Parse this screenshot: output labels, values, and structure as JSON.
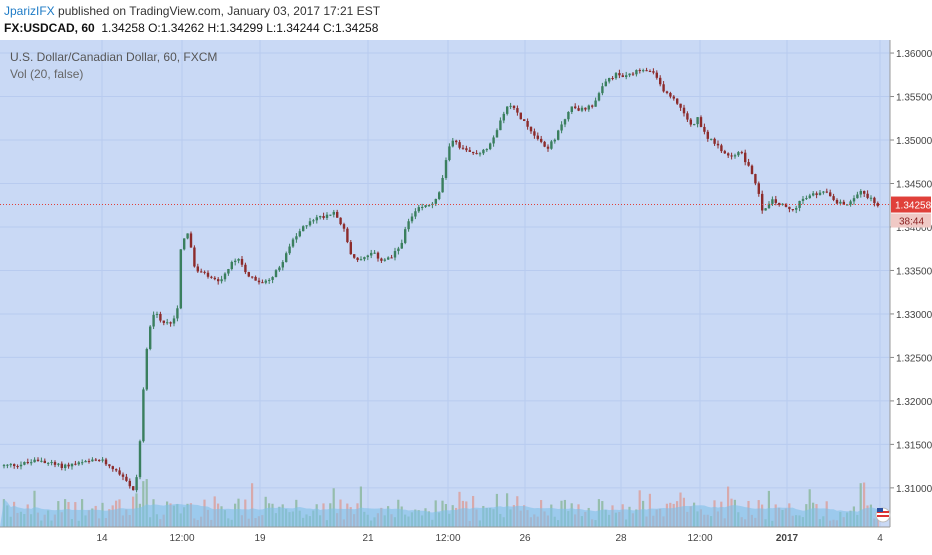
{
  "header": {
    "author": "JparizIFX",
    "published": "published on TradingView.com, January 03, 2017 17:21 EST",
    "symbol": "FX:USDCAD, 60",
    "o_label": "O:",
    "o": "1.34262",
    "h_label": "H:",
    "h": "1.34299",
    "l_label": "L:",
    "l": "1.34244",
    "c_label": "C:",
    "c": "1.34258",
    "last": "1.34258"
  },
  "legend": {
    "title": "U.S. Dollar/Canadian Dollar, 60, FXCM",
    "volume": "Vol (20, false)"
  },
  "colors": {
    "background": "#c9d9f5",
    "up": "#3a7f5e",
    "down": "#8c2b2b",
    "volume_up": "#8fb9a4",
    "volume_down": "#d9a3a3",
    "volume_ma": "#7fbfe8",
    "last_price": "#e0403a"
  },
  "chart_data": {
    "type": "candlestick",
    "ylim": [
      1.3055,
      1.3615
    ],
    "y_ticks": [
      "1.36000",
      "1.35500",
      "1.35000",
      "1.34500",
      "1.34000",
      "1.33500",
      "1.33000",
      "1.32500",
      "1.32000",
      "1.31500",
      "1.31000"
    ],
    "x_ticks": [
      "14",
      "12:00",
      "19",
      "21",
      "12:00",
      "26",
      "28",
      "12:00",
      "2017",
      "4"
    ],
    "last_price": 1.34258,
    "countdown": "38:44",
    "path": [
      [
        0,
        1.3125
      ],
      [
        20,
        1.3127
      ],
      [
        40,
        1.3132
      ],
      [
        60,
        1.3125
      ],
      [
        80,
        1.3128
      ],
      [
        100,
        1.3132
      ],
      [
        115,
        1.3122
      ],
      [
        125,
        1.3112
      ],
      [
        133,
        1.3095
      ],
      [
        138,
        1.312
      ],
      [
        143,
        1.3205
      ],
      [
        148,
        1.328
      ],
      [
        155,
        1.3305
      ],
      [
        162,
        1.3288
      ],
      [
        170,
        1.329
      ],
      [
        177,
        1.33
      ],
      [
        181,
        1.338
      ],
      [
        188,
        1.3395
      ],
      [
        195,
        1.335
      ],
      [
        205,
        1.3345
      ],
      [
        212,
        1.334
      ],
      [
        220,
        1.3335
      ],
      [
        230,
        1.3355
      ],
      [
        238,
        1.3365
      ],
      [
        248,
        1.3345
      ],
      [
        258,
        1.3335
      ],
      [
        268,
        1.334
      ],
      [
        278,
        1.335
      ],
      [
        288,
        1.3375
      ],
      [
        300,
        1.3395
      ],
      [
        310,
        1.3408
      ],
      [
        322,
        1.3412
      ],
      [
        335,
        1.3418
      ],
      [
        343,
        1.34
      ],
      [
        352,
        1.3365
      ],
      [
        362,
        1.3362
      ],
      [
        372,
        1.337
      ],
      [
        382,
        1.3362
      ],
      [
        392,
        1.3365
      ],
      [
        400,
        1.3378
      ],
      [
        408,
        1.3405
      ],
      [
        418,
        1.342
      ],
      [
        428,
        1.3425
      ],
      [
        438,
        1.3432
      ],
      [
        446,
        1.3475
      ],
      [
        452,
        1.3502
      ],
      [
        460,
        1.3492
      ],
      [
        468,
        1.3485
      ],
      [
        478,
        1.3485
      ],
      [
        488,
        1.3492
      ],
      [
        496,
        1.351
      ],
      [
        502,
        1.353
      ],
      [
        510,
        1.354
      ],
      [
        518,
        1.353
      ],
      [
        528,
        1.3515
      ],
      [
        536,
        1.3505
      ],
      [
        546,
        1.349
      ],
      [
        555,
        1.35
      ],
      [
        562,
        1.352
      ],
      [
        572,
        1.3538
      ],
      [
        582,
        1.3535
      ],
      [
        592,
        1.354
      ],
      [
        600,
        1.3555
      ],
      [
        608,
        1.357
      ],
      [
        616,
        1.3575
      ],
      [
        626,
        1.3572
      ],
      [
        636,
        1.3578
      ],
      [
        646,
        1.358
      ],
      [
        654,
        1.3575
      ],
      [
        662,
        1.356
      ],
      [
        670,
        1.355
      ],
      [
        680,
        1.354
      ],
      [
        690,
        1.3515
      ],
      [
        698,
        1.3525
      ],
      [
        706,
        1.3505
      ],
      [
        714,
        1.3498
      ],
      [
        722,
        1.3485
      ],
      [
        730,
        1.348
      ],
      [
        740,
        1.3488
      ],
      [
        748,
        1.347
      ],
      [
        756,
        1.345
      ],
      [
        762,
        1.342
      ],
      [
        772,
        1.343
      ],
      [
        782,
        1.3425
      ],
      [
        792,
        1.3418
      ],
      [
        800,
        1.343
      ],
      [
        810,
        1.3435
      ],
      [
        820,
        1.344
      ],
      [
        830,
        1.3438
      ],
      [
        838,
        1.3428
      ],
      [
        846,
        1.3425
      ],
      [
        856,
        1.3438
      ],
      [
        864,
        1.344
      ],
      [
        872,
        1.343
      ],
      [
        878,
        1.34258
      ]
    ]
  }
}
